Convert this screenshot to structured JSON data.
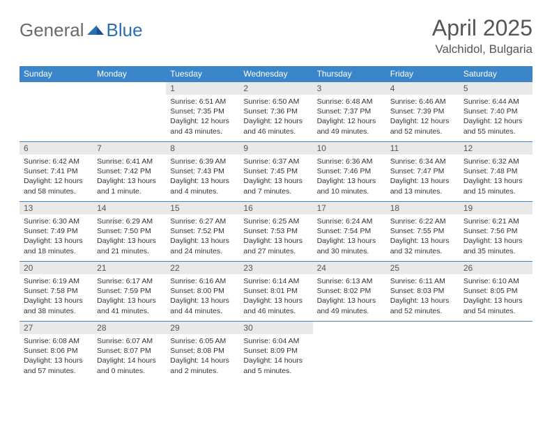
{
  "logo": {
    "general": "General",
    "blue": "Blue"
  },
  "title": {
    "month": "April 2025",
    "location": "Valchidol, Bulgaria"
  },
  "colors": {
    "header_bg": "#3b86c8",
    "header_text": "#ffffff",
    "daynum_bg": "#e9e9e9",
    "border": "#3b86c8",
    "text": "#333333"
  },
  "daysOfWeek": [
    "Sunday",
    "Monday",
    "Tuesday",
    "Wednesday",
    "Thursday",
    "Friday",
    "Saturday"
  ],
  "weeks": [
    [
      null,
      null,
      {
        "n": "1",
        "sunrise": "Sunrise: 6:51 AM",
        "sunset": "Sunset: 7:35 PM",
        "daylight": "Daylight: 12 hours and 43 minutes."
      },
      {
        "n": "2",
        "sunrise": "Sunrise: 6:50 AM",
        "sunset": "Sunset: 7:36 PM",
        "daylight": "Daylight: 12 hours and 46 minutes."
      },
      {
        "n": "3",
        "sunrise": "Sunrise: 6:48 AM",
        "sunset": "Sunset: 7:37 PM",
        "daylight": "Daylight: 12 hours and 49 minutes."
      },
      {
        "n": "4",
        "sunrise": "Sunrise: 6:46 AM",
        "sunset": "Sunset: 7:39 PM",
        "daylight": "Daylight: 12 hours and 52 minutes."
      },
      {
        "n": "5",
        "sunrise": "Sunrise: 6:44 AM",
        "sunset": "Sunset: 7:40 PM",
        "daylight": "Daylight: 12 hours and 55 minutes."
      }
    ],
    [
      {
        "n": "6",
        "sunrise": "Sunrise: 6:42 AM",
        "sunset": "Sunset: 7:41 PM",
        "daylight": "Daylight: 12 hours and 58 minutes."
      },
      {
        "n": "7",
        "sunrise": "Sunrise: 6:41 AM",
        "sunset": "Sunset: 7:42 PM",
        "daylight": "Daylight: 13 hours and 1 minute."
      },
      {
        "n": "8",
        "sunrise": "Sunrise: 6:39 AM",
        "sunset": "Sunset: 7:43 PM",
        "daylight": "Daylight: 13 hours and 4 minutes."
      },
      {
        "n": "9",
        "sunrise": "Sunrise: 6:37 AM",
        "sunset": "Sunset: 7:45 PM",
        "daylight": "Daylight: 13 hours and 7 minutes."
      },
      {
        "n": "10",
        "sunrise": "Sunrise: 6:36 AM",
        "sunset": "Sunset: 7:46 PM",
        "daylight": "Daylight: 13 hours and 10 minutes."
      },
      {
        "n": "11",
        "sunrise": "Sunrise: 6:34 AM",
        "sunset": "Sunset: 7:47 PM",
        "daylight": "Daylight: 13 hours and 13 minutes."
      },
      {
        "n": "12",
        "sunrise": "Sunrise: 6:32 AM",
        "sunset": "Sunset: 7:48 PM",
        "daylight": "Daylight: 13 hours and 15 minutes."
      }
    ],
    [
      {
        "n": "13",
        "sunrise": "Sunrise: 6:30 AM",
        "sunset": "Sunset: 7:49 PM",
        "daylight": "Daylight: 13 hours and 18 minutes."
      },
      {
        "n": "14",
        "sunrise": "Sunrise: 6:29 AM",
        "sunset": "Sunset: 7:50 PM",
        "daylight": "Daylight: 13 hours and 21 minutes."
      },
      {
        "n": "15",
        "sunrise": "Sunrise: 6:27 AM",
        "sunset": "Sunset: 7:52 PM",
        "daylight": "Daylight: 13 hours and 24 minutes."
      },
      {
        "n": "16",
        "sunrise": "Sunrise: 6:25 AM",
        "sunset": "Sunset: 7:53 PM",
        "daylight": "Daylight: 13 hours and 27 minutes."
      },
      {
        "n": "17",
        "sunrise": "Sunrise: 6:24 AM",
        "sunset": "Sunset: 7:54 PM",
        "daylight": "Daylight: 13 hours and 30 minutes."
      },
      {
        "n": "18",
        "sunrise": "Sunrise: 6:22 AM",
        "sunset": "Sunset: 7:55 PM",
        "daylight": "Daylight: 13 hours and 32 minutes."
      },
      {
        "n": "19",
        "sunrise": "Sunrise: 6:21 AM",
        "sunset": "Sunset: 7:56 PM",
        "daylight": "Daylight: 13 hours and 35 minutes."
      }
    ],
    [
      {
        "n": "20",
        "sunrise": "Sunrise: 6:19 AM",
        "sunset": "Sunset: 7:58 PM",
        "daylight": "Daylight: 13 hours and 38 minutes."
      },
      {
        "n": "21",
        "sunrise": "Sunrise: 6:17 AM",
        "sunset": "Sunset: 7:59 PM",
        "daylight": "Daylight: 13 hours and 41 minutes."
      },
      {
        "n": "22",
        "sunrise": "Sunrise: 6:16 AM",
        "sunset": "Sunset: 8:00 PM",
        "daylight": "Daylight: 13 hours and 44 minutes."
      },
      {
        "n": "23",
        "sunrise": "Sunrise: 6:14 AM",
        "sunset": "Sunset: 8:01 PM",
        "daylight": "Daylight: 13 hours and 46 minutes."
      },
      {
        "n": "24",
        "sunrise": "Sunrise: 6:13 AM",
        "sunset": "Sunset: 8:02 PM",
        "daylight": "Daylight: 13 hours and 49 minutes."
      },
      {
        "n": "25",
        "sunrise": "Sunrise: 6:11 AM",
        "sunset": "Sunset: 8:03 PM",
        "daylight": "Daylight: 13 hours and 52 minutes."
      },
      {
        "n": "26",
        "sunrise": "Sunrise: 6:10 AM",
        "sunset": "Sunset: 8:05 PM",
        "daylight": "Daylight: 13 hours and 54 minutes."
      }
    ],
    [
      {
        "n": "27",
        "sunrise": "Sunrise: 6:08 AM",
        "sunset": "Sunset: 8:06 PM",
        "daylight": "Daylight: 13 hours and 57 minutes."
      },
      {
        "n": "28",
        "sunrise": "Sunrise: 6:07 AM",
        "sunset": "Sunset: 8:07 PM",
        "daylight": "Daylight: 14 hours and 0 minutes."
      },
      {
        "n": "29",
        "sunrise": "Sunrise: 6:05 AM",
        "sunset": "Sunset: 8:08 PM",
        "daylight": "Daylight: 14 hours and 2 minutes."
      },
      {
        "n": "30",
        "sunrise": "Sunrise: 6:04 AM",
        "sunset": "Sunset: 8:09 PM",
        "daylight": "Daylight: 14 hours and 5 minutes."
      },
      null,
      null,
      null
    ]
  ]
}
